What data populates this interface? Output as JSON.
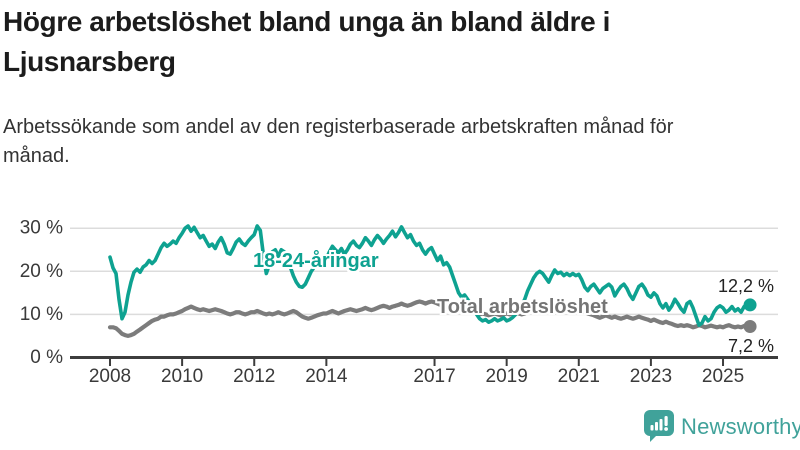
{
  "header": {
    "title": "Högre arbetslöshet bland unga än bland äldre i Ljusnarsberg",
    "subtitle": "Arbetssökande som andel av den registerbaserade arbetskraften månad för månad."
  },
  "chart_data": {
    "type": "line",
    "title": "Högre arbetslöshet bland unga än bland äldre i Ljusnarsberg",
    "unit": "%",
    "grid": true,
    "legend_position": "inline-labels",
    "x_start_year": 2008,
    "x_points_per_year": 12,
    "x_tick_years": [
      2008,
      2010,
      2012,
      2014,
      2017,
      2019,
      2021,
      2023,
      2025
    ],
    "x_tick_labels": [
      "2008",
      "2010",
      "2012",
      "2014",
      "2017",
      "2019",
      "2021",
      "2023",
      "2025"
    ],
    "ylim": [
      0,
      33
    ],
    "y_ticks": [
      {
        "value": 0,
        "label": "0 %"
      },
      {
        "value": 10,
        "label": "10 %"
      },
      {
        "value": 20,
        "label": "20 %"
      },
      {
        "value": 30,
        "label": "30 %"
      }
    ],
    "series": [
      {
        "name": "18-24-åringar",
        "color": "#0ea291",
        "end_value": 12.2,
        "end_label": "12,2 %",
        "values": [
          23.3,
          20.8,
          19.5,
          13.5,
          9.0,
          10.5,
          14.5,
          17.5,
          19.8,
          20.5,
          19.8,
          21.0,
          21.5,
          22.5,
          21.8,
          22.5,
          24.0,
          25.5,
          26.5,
          25.8,
          26.3,
          27.0,
          26.5,
          27.8,
          28.8,
          30.0,
          30.5,
          29.3,
          30.2,
          29.0,
          27.8,
          28.3,
          27.0,
          25.8,
          26.3,
          25.3,
          26.8,
          27.8,
          26.3,
          24.3,
          24.0,
          25.3,
          26.8,
          27.5,
          26.5,
          26.0,
          27.0,
          27.8,
          28.5,
          30.5,
          29.5,
          24.0,
          19.5,
          21.5,
          24.5,
          25.0,
          23.5,
          25.0,
          24.5,
          23.0,
          21.0,
          19.0,
          17.5,
          16.5,
          16.3,
          17.0,
          18.5,
          20.0,
          21.0,
          21.5,
          22.0,
          22.5,
          23.0,
          24.5,
          25.8,
          25.0,
          24.3,
          25.3,
          24.0,
          25.0,
          26.3,
          27.0,
          26.0,
          25.5,
          26.5,
          27.8,
          27.0,
          26.0,
          27.3,
          28.3,
          27.5,
          26.5,
          27.5,
          28.3,
          29.3,
          28.0,
          29.0,
          30.3,
          29.0,
          27.8,
          28.5,
          27.0,
          26.0,
          26.5,
          25.0,
          24.0,
          25.0,
          25.5,
          24.0,
          22.5,
          23.5,
          21.5,
          22.0,
          21.0,
          19.0,
          17.0,
          15.0,
          14.0,
          14.5,
          13.5,
          12.5,
          11.0,
          10.0,
          9.0,
          8.5,
          8.8,
          8.2,
          8.5,
          9.0,
          8.5,
          8.8,
          9.2,
          8.5,
          8.8,
          9.3,
          10.0,
          11.0,
          12.0,
          13.5,
          15.5,
          17.0,
          18.5,
          19.5,
          20.0,
          19.5,
          18.5,
          17.5,
          19.0,
          20.3,
          19.5,
          19.8,
          19.0,
          19.5,
          19.0,
          19.5,
          19.0,
          19.3,
          18.0,
          16.3,
          15.5,
          16.5,
          17.0,
          16.0,
          15.0,
          16.0,
          16.5,
          17.0,
          16.3,
          14.3,
          15.5,
          16.5,
          17.0,
          16.0,
          14.5,
          13.5,
          15.0,
          16.5,
          17.0,
          16.0,
          14.5,
          14.0,
          15.0,
          14.3,
          12.5,
          11.5,
          12.5,
          11.0,
          12.0,
          13.5,
          12.5,
          11.3,
          10.5,
          12.5,
          13.0,
          11.5,
          9.5,
          7.5,
          8.0,
          9.5,
          8.5,
          9.0,
          10.5,
          11.5,
          12.0,
          11.5,
          10.5,
          11.0,
          11.8,
          10.8,
          11.3,
          10.5,
          11.8,
          12.5,
          12.2
        ]
      },
      {
        "name": "Total arbetslöshet",
        "color": "#7c7c7c",
        "end_value": 7.2,
        "end_label": "7,2 %",
        "values": [
          7.0,
          7.0,
          6.8,
          6.2,
          5.5,
          5.2,
          5.0,
          5.2,
          5.5,
          6.0,
          6.5,
          7.0,
          7.5,
          8.0,
          8.5,
          8.8,
          9.0,
          9.5,
          9.5,
          9.8,
          10.0,
          10.0,
          10.2,
          10.5,
          10.8,
          11.2,
          11.5,
          11.8,
          11.5,
          11.2,
          11.0,
          11.2,
          11.0,
          10.8,
          11.0,
          11.2,
          11.0,
          10.8,
          10.5,
          10.2,
          10.0,
          10.2,
          10.5,
          10.5,
          10.2,
          10.0,
          10.2,
          10.5,
          10.5,
          10.8,
          10.5,
          10.2,
          10.0,
          10.2,
          10.0,
          10.2,
          10.5,
          10.2,
          10.0,
          10.2,
          10.5,
          10.8,
          10.5,
          10.0,
          9.5,
          9.2,
          9.0,
          9.2,
          9.5,
          9.8,
          10.0,
          10.2,
          10.2,
          10.5,
          10.8,
          10.5,
          10.2,
          10.5,
          10.8,
          11.0,
          11.2,
          11.0,
          10.8,
          11.0,
          11.2,
          11.5,
          11.2,
          11.0,
          11.2,
          11.5,
          11.8,
          12.0,
          11.8,
          11.5,
          11.8,
          12.0,
          12.2,
          12.5,
          12.2,
          12.0,
          12.2,
          12.5,
          12.8,
          13.0,
          12.8,
          12.5,
          12.8,
          13.0,
          12.8,
          12.5,
          12.2,
          12.0,
          11.8,
          11.5,
          11.2,
          11.0,
          11.2,
          11.0,
          10.8,
          10.5,
          10.8,
          10.5,
          10.2,
          10.0,
          10.2,
          10.0,
          9.8,
          10.0,
          10.2,
          10.0,
          9.8,
          10.0,
          10.2,
          10.0,
          10.2,
          10.5,
          10.2,
          10.0,
          10.2,
          10.5,
          10.8,
          11.0,
          11.0,
          11.2,
          11.0,
          11.0,
          11.2,
          11.5,
          11.8,
          11.5,
          11.2,
          11.0,
          10.8,
          10.5,
          10.8,
          11.0,
          11.0,
          10.8,
          10.5,
          10.2,
          10.0,
          9.8,
          9.5,
          9.2,
          9.5,
          9.8,
          9.5,
          9.2,
          9.5,
          9.2,
          9.0,
          9.2,
          9.5,
          9.2,
          9.0,
          9.2,
          9.5,
          9.2,
          9.0,
          8.8,
          8.5,
          8.8,
          8.5,
          8.2,
          8.0,
          8.3,
          8.0,
          7.8,
          7.5,
          7.3,
          7.5,
          7.3,
          7.5,
          7.3,
          7.0,
          7.2,
          7.5,
          7.3,
          7.0,
          7.2,
          7.4,
          7.2,
          7.0,
          7.2,
          7.0,
          7.3,
          7.5,
          7.2,
          7.0,
          7.2,
          7.0,
          7.3,
          7.4,
          7.2
        ]
      }
    ]
  },
  "footer": {
    "brand": "Newsworthy"
  },
  "colors": {
    "accent_teal": "#0ea291",
    "line_gray": "#7c7c7c",
    "grid": "#dcdcdc",
    "axis": "#3d3d3d",
    "tick_text": "#3a3a3a",
    "logo_teal": "#40a29a"
  }
}
